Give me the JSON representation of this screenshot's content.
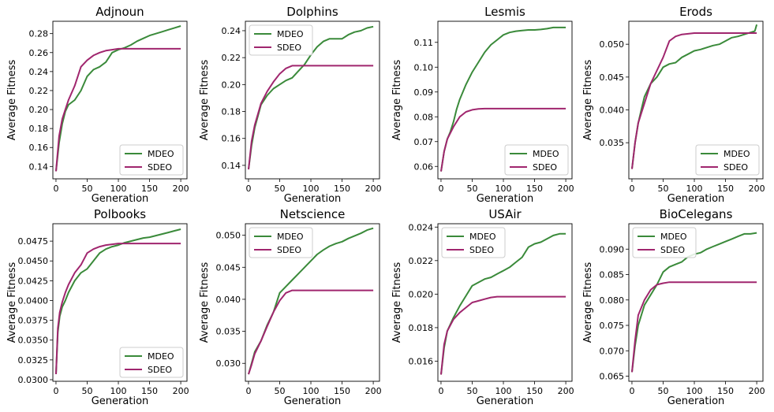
{
  "figure": {
    "colors": {
      "MDEO": "#3a8a3a",
      "SDEO": "#a0266e"
    },
    "series_names": [
      "MDEO",
      "SDEO"
    ],
    "xlabel": "Generation",
    "ylabel": "Average Fitness"
  },
  "chart_data": [
    {
      "type": "line",
      "title": "Adjnoun",
      "xlabel": "Generation",
      "ylabel": "Average Fitness",
      "xlim": [
        -5,
        210
      ],
      "xticks": [
        0,
        50,
        100,
        150,
        200
      ],
      "xtick_labels": [
        "0",
        "50",
        "100",
        "150",
        "200"
      ],
      "ylim": [
        0.127,
        0.293
      ],
      "yticks": [
        0.14,
        0.16,
        0.18,
        0.2,
        0.22,
        0.24,
        0.26,
        0.28
      ],
      "ytick_labels": [
        "0.14",
        "0.16",
        "0.18",
        "0.20",
        "0.22",
        "0.24",
        "0.26",
        "0.28"
      ],
      "legend_loc": "lower-right",
      "series": [
        {
          "name": "MDEO",
          "x": [
            0,
            5,
            10,
            15,
            20,
            30,
            40,
            50,
            60,
            70,
            80,
            90,
            100,
            110,
            120,
            130,
            140,
            150,
            160,
            170,
            180,
            190,
            200
          ],
          "y": [
            0.135,
            0.165,
            0.185,
            0.198,
            0.205,
            0.21,
            0.22,
            0.235,
            0.242,
            0.245,
            0.25,
            0.26,
            0.263,
            0.265,
            0.268,
            0.272,
            0.275,
            0.278,
            0.28,
            0.282,
            0.284,
            0.286,
            0.288
          ]
        },
        {
          "name": "SDEO",
          "x": [
            0,
            5,
            10,
            15,
            20,
            30,
            40,
            50,
            60,
            70,
            80,
            90,
            100,
            110,
            200
          ],
          "y": [
            0.135,
            0.172,
            0.19,
            0.2,
            0.21,
            0.225,
            0.245,
            0.252,
            0.257,
            0.26,
            0.262,
            0.263,
            0.264,
            0.264,
            0.264
          ]
        }
      ]
    },
    {
      "type": "line",
      "title": "Dolphins",
      "xlabel": "Generation",
      "ylabel": "Average Fitness",
      "xlim": [
        -5,
        210
      ],
      "xticks": [
        0,
        50,
        100,
        150,
        200
      ],
      "xtick_labels": [
        "0",
        "50",
        "100",
        "150",
        "200"
      ],
      "ylim": [
        0.13,
        0.247
      ],
      "yticks": [
        0.14,
        0.16,
        0.18,
        0.2,
        0.22,
        0.24
      ],
      "ytick_labels": [
        "0.14",
        "0.16",
        "0.18",
        "0.20",
        "0.22",
        "0.24"
      ],
      "legend_loc": "upper-left",
      "series": [
        {
          "name": "MDEO",
          "x": [
            0,
            5,
            10,
            20,
            30,
            40,
            50,
            60,
            70,
            80,
            90,
            100,
            110,
            120,
            130,
            150,
            160,
            170,
            180,
            190,
            200
          ],
          "y": [
            0.137,
            0.155,
            0.168,
            0.185,
            0.192,
            0.197,
            0.2,
            0.203,
            0.205,
            0.21,
            0.215,
            0.222,
            0.228,
            0.232,
            0.234,
            0.234,
            0.237,
            0.239,
            0.24,
            0.242,
            0.243
          ]
        },
        {
          "name": "SDEO",
          "x": [
            0,
            5,
            10,
            20,
            30,
            40,
            50,
            60,
            70,
            200
          ],
          "y": [
            0.137,
            0.158,
            0.17,
            0.186,
            0.195,
            0.202,
            0.208,
            0.212,
            0.214,
            0.214
          ]
        }
      ]
    },
    {
      "type": "line",
      "title": "Lesmis",
      "xlabel": "Generation",
      "ylabel": "Average Fitness",
      "xlim": [
        -5,
        210
      ],
      "xticks": [
        0,
        50,
        100,
        150,
        200
      ],
      "xtick_labels": [
        "0",
        "50",
        "100",
        "150",
        "200"
      ],
      "ylim": [
        0.055,
        0.1185
      ],
      "yticks": [
        0.06,
        0.07,
        0.08,
        0.09,
        0.1,
        0.11
      ],
      "ytick_labels": [
        "0.06",
        "0.07",
        "0.08",
        "0.09",
        "0.10",
        "0.11"
      ],
      "legend_loc": "lower-right",
      "series": [
        {
          "name": "MDEO",
          "x": [
            0,
            5,
            10,
            15,
            20,
            25,
            30,
            40,
            50,
            60,
            70,
            80,
            90,
            100,
            110,
            120,
            130,
            140,
            150,
            160,
            170,
            180,
            190,
            200
          ],
          "y": [
            0.058,
            0.066,
            0.071,
            0.074,
            0.078,
            0.083,
            0.087,
            0.093,
            0.098,
            0.102,
            0.106,
            0.109,
            0.111,
            0.113,
            0.114,
            0.1145,
            0.1148,
            0.115,
            0.115,
            0.1152,
            0.1155,
            0.116,
            0.116,
            0.116
          ]
        },
        {
          "name": "SDEO",
          "x": [
            0,
            5,
            10,
            20,
            30,
            40,
            50,
            60,
            70,
            200
          ],
          "y": [
            0.058,
            0.066,
            0.071,
            0.076,
            0.08,
            0.082,
            0.0828,
            0.0832,
            0.0833,
            0.0833
          ]
        }
      ]
    },
    {
      "type": "line",
      "title": "Erods",
      "xlabel": "Generation",
      "ylabel": "Average Fitness",
      "xlim": [
        -5,
        210
      ],
      "xticks": [
        0,
        50,
        100,
        150,
        200
      ],
      "xtick_labels": [
        "0",
        "50",
        "100",
        "150",
        "200"
      ],
      "ylim": [
        0.0295,
        0.0535
      ],
      "yticks": [
        0.035,
        0.04,
        0.045,
        0.05
      ],
      "ytick_labels": [
        "0.035",
        "0.040",
        "0.045",
        "0.050"
      ],
      "legend_loc": "lower-right",
      "series": [
        {
          "name": "MDEO",
          "x": [
            0,
            5,
            10,
            15,
            20,
            30,
            40,
            50,
            60,
            70,
            80,
            90,
            100,
            110,
            120,
            130,
            140,
            150,
            160,
            170,
            180,
            190,
            197,
            200
          ],
          "y": [
            0.031,
            0.035,
            0.038,
            0.04,
            0.042,
            0.044,
            0.045,
            0.0465,
            0.047,
            0.0472,
            0.048,
            0.0485,
            0.049,
            0.0492,
            0.0495,
            0.0498,
            0.05,
            0.0505,
            0.051,
            0.0512,
            0.0515,
            0.0518,
            0.052,
            0.053
          ]
        },
        {
          "name": "SDEO",
          "x": [
            0,
            5,
            10,
            15,
            20,
            30,
            40,
            50,
            60,
            70,
            80,
            100,
            200
          ],
          "y": [
            0.031,
            0.035,
            0.038,
            0.0395,
            0.041,
            0.044,
            0.046,
            0.048,
            0.0505,
            0.0512,
            0.0515,
            0.0517,
            0.0517
          ]
        }
      ]
    },
    {
      "type": "line",
      "title": "Polbooks",
      "xlabel": "Generation",
      "ylabel": "Average Fitness",
      "xlim": [
        -5,
        210
      ],
      "xticks": [
        0,
        50,
        100,
        150,
        200
      ],
      "xtick_labels": [
        "0",
        "50",
        "100",
        "150",
        "200"
      ],
      "ylim": [
        0.0298,
        0.0497
      ],
      "yticks": [
        0.03,
        0.0325,
        0.035,
        0.0375,
        0.04,
        0.0425,
        0.045,
        0.0475
      ],
      "ytick_labels": [
        "0.0300",
        "0.0325",
        "0.0350",
        "0.0375",
        "0.0400",
        "0.0425",
        "0.0450",
        "0.0475"
      ],
      "legend_loc": "lower-right",
      "series": [
        {
          "name": "MDEO",
          "x": [
            0,
            3,
            6,
            10,
            15,
            20,
            30,
            40,
            50,
            60,
            70,
            80,
            90,
            100,
            110,
            120,
            130,
            140,
            150,
            160,
            170,
            180,
            190,
            200
          ],
          "y": [
            0.0307,
            0.036,
            0.038,
            0.0392,
            0.04,
            0.041,
            0.0425,
            0.0435,
            0.044,
            0.045,
            0.046,
            0.0465,
            0.0468,
            0.047,
            0.0473,
            0.0475,
            0.0477,
            0.0479,
            0.048,
            0.0482,
            0.0484,
            0.0486,
            0.0488,
            0.049
          ]
        },
        {
          "name": "SDEO",
          "x": [
            0,
            3,
            6,
            10,
            15,
            20,
            30,
            40,
            50,
            60,
            70,
            80,
            90,
            100,
            200
          ],
          "y": [
            0.0307,
            0.0365,
            0.0385,
            0.0398,
            0.041,
            0.042,
            0.0435,
            0.0445,
            0.046,
            0.0465,
            0.0468,
            0.047,
            0.0471,
            0.0472,
            0.0472
          ]
        }
      ]
    },
    {
      "type": "line",
      "title": "Netscience",
      "xlabel": "Generation",
      "ylabel": "Average Fitness",
      "xlim": [
        -5,
        210
      ],
      "xticks": [
        0,
        50,
        100,
        150,
        200
      ],
      "xtick_labels": [
        "0",
        "50",
        "100",
        "150",
        "200"
      ],
      "ylim": [
        0.0272,
        0.0518
      ],
      "yticks": [
        0.03,
        0.035,
        0.04,
        0.045,
        0.05
      ],
      "ytick_labels": [
        "0.030",
        "0.035",
        "0.040",
        "0.045",
        "0.050"
      ],
      "legend_loc": "upper-left",
      "series": [
        {
          "name": "MDEO",
          "x": [
            0,
            5,
            10,
            20,
            30,
            40,
            50,
            60,
            70,
            80,
            90,
            100,
            110,
            120,
            130,
            140,
            150,
            160,
            170,
            180,
            190,
            200
          ],
          "y": [
            0.0283,
            0.03,
            0.0318,
            0.0335,
            0.036,
            0.038,
            0.041,
            0.042,
            0.043,
            0.044,
            0.045,
            0.046,
            0.047,
            0.0477,
            0.0483,
            0.0487,
            0.049,
            0.0495,
            0.0499,
            0.0503,
            0.0508,
            0.0511
          ]
        },
        {
          "name": "SDEO",
          "x": [
            0,
            5,
            10,
            20,
            30,
            40,
            50,
            60,
            70,
            200
          ],
          "y": [
            0.0283,
            0.0298,
            0.0315,
            0.0335,
            0.0358,
            0.038,
            0.0398,
            0.041,
            0.0414,
            0.0414
          ]
        }
      ]
    },
    {
      "type": "line",
      "title": "USAir",
      "xlabel": "Generation",
      "ylabel": "Average Fitness",
      "xlim": [
        -5,
        210
      ],
      "xticks": [
        0,
        50,
        100,
        150,
        200
      ],
      "xtick_labels": [
        "0",
        "50",
        "100",
        "150",
        "200"
      ],
      "ylim": [
        0.0148,
        0.0242
      ],
      "yticks": [
        0.016,
        0.018,
        0.02,
        0.022,
        0.024
      ],
      "ytick_labels": [
        "0.016",
        "0.018",
        "0.020",
        "0.022",
        "0.024"
      ],
      "legend_loc": "upper-left",
      "series": [
        {
          "name": "MDEO",
          "x": [
            0,
            5,
            10,
            20,
            30,
            40,
            50,
            60,
            70,
            80,
            90,
            100,
            110,
            120,
            130,
            140,
            150,
            160,
            170,
            180,
            190,
            200
          ],
          "y": [
            0.0152,
            0.0168,
            0.0178,
            0.0186,
            0.0193,
            0.0199,
            0.0205,
            0.0207,
            0.0209,
            0.021,
            0.0212,
            0.0214,
            0.0216,
            0.0219,
            0.0222,
            0.0228,
            0.023,
            0.0231,
            0.0233,
            0.0235,
            0.0236,
            0.0236
          ]
        },
        {
          "name": "SDEO",
          "x": [
            0,
            5,
            10,
            20,
            30,
            40,
            50,
            60,
            70,
            80,
            90,
            200
          ],
          "y": [
            0.0152,
            0.017,
            0.0178,
            0.0185,
            0.0189,
            0.0192,
            0.0195,
            0.0196,
            0.0197,
            0.0198,
            0.01985,
            0.01985
          ]
        }
      ]
    },
    {
      "type": "line",
      "title": "BioCelegans",
      "xlabel": "Generation",
      "ylabel": "Average Fitness",
      "xlim": [
        -5,
        210
      ],
      "xticks": [
        0,
        50,
        100,
        150,
        200
      ],
      "xtick_labels": [
        "0",
        "50",
        "100",
        "150",
        "200"
      ],
      "ylim": [
        0.064,
        0.095
      ],
      "yticks": [
        0.065,
        0.07,
        0.075,
        0.08,
        0.085,
        0.09
      ],
      "ytick_labels": [
        "0.065",
        "0.070",
        "0.075",
        "0.080",
        "0.085",
        "0.090"
      ],
      "legend_loc": "upper-left",
      "series": [
        {
          "name": "MDEO",
          "x": [
            0,
            5,
            10,
            20,
            30,
            40,
            50,
            60,
            70,
            80,
            90,
            100,
            110,
            120,
            130,
            140,
            150,
            160,
            170,
            180,
            190,
            200
          ],
          "y": [
            0.0658,
            0.071,
            0.075,
            0.079,
            0.081,
            0.083,
            0.0855,
            0.0865,
            0.087,
            0.0875,
            0.0885,
            0.089,
            0.0893,
            0.09,
            0.0905,
            0.091,
            0.0915,
            0.092,
            0.0925,
            0.093,
            0.093,
            0.0932
          ]
        },
        {
          "name": "SDEO",
          "x": [
            0,
            5,
            10,
            20,
            30,
            40,
            50,
            60,
            70,
            200
          ],
          "y": [
            0.0658,
            0.072,
            0.077,
            0.08,
            0.082,
            0.083,
            0.0833,
            0.0835,
            0.0835,
            0.0835
          ]
        }
      ]
    }
  ]
}
